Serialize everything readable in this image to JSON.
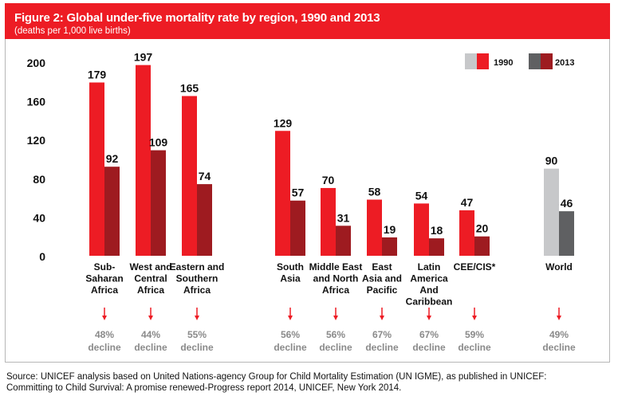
{
  "header": {
    "title": "Figure 2: Global under-five mortality rate by region, 1990 and 2013",
    "subtitle": "(deaths per 1,000 live births)"
  },
  "colors": {
    "header_bg": "#ed1c24",
    "bar_1990": "#ed1c24",
    "bar_2013": "#9e1b20",
    "world_1990": "#c7c8ca",
    "world_2013": "#5f6062",
    "arrow": "#ed1c24",
    "decline_text": "#8a8a8a"
  },
  "chart_data": {
    "type": "bar",
    "ylim": [
      0,
      200
    ],
    "yticks": [
      "0",
      "40",
      "80",
      "120",
      "160",
      "200"
    ],
    "legend": {
      "position": "top-right",
      "labels": [
        "1990",
        "2013"
      ]
    },
    "categories": [
      {
        "label": [
          "Sub-",
          "Saharan",
          "Africa"
        ],
        "v1990": 179,
        "v2013": 92,
        "decline": [
          "48%",
          "decline"
        ],
        "world": false
      },
      {
        "label": [
          "West and",
          "Central",
          "Africa"
        ],
        "v1990": 197,
        "v2013": 109,
        "decline": [
          "44%",
          "decline"
        ],
        "world": false
      },
      {
        "label": [
          "Eastern and",
          "Southern",
          "Africa"
        ],
        "v1990": 165,
        "v2013": 74,
        "decline": [
          "55%",
          "decline"
        ],
        "world": false
      },
      {
        "label": [
          "South",
          "Asia"
        ],
        "v1990": 129,
        "v2013": 57,
        "decline": [
          "56%",
          "decline"
        ],
        "world": false
      },
      {
        "label": [
          "Middle East",
          "and North",
          "Africa"
        ],
        "v1990": 70,
        "v2013": 31,
        "decline": [
          "56%",
          "decline"
        ],
        "world": false
      },
      {
        "label": [
          "East",
          "Asia and",
          "Pacific"
        ],
        "v1990": 58,
        "v2013": 19,
        "decline": [
          "67%",
          "decline"
        ],
        "world": false
      },
      {
        "label": [
          "Latin",
          "America",
          "And",
          "Caribbean"
        ],
        "v1990": 54,
        "v2013": 18,
        "decline": [
          "67%",
          "decline"
        ],
        "world": false
      },
      {
        "label": [
          "CEE/CIS*"
        ],
        "v1990": 47,
        "v2013": 20,
        "decline": [
          "59%",
          "decline"
        ],
        "world": false
      },
      {
        "label": [
          "World"
        ],
        "v1990": 90,
        "v2013": 46,
        "decline": [
          "49%",
          "decline"
        ],
        "world": true
      }
    ]
  },
  "source": {
    "line1": "Source: UNICEF analysis based on United Nations-agency Group for Child Mortality Estimation (UN IGME), as published in UNICEF:",
    "line2": "Committing to Child Survival: A promise renewed-Progress report 2014, UNICEF, New York 2014."
  }
}
